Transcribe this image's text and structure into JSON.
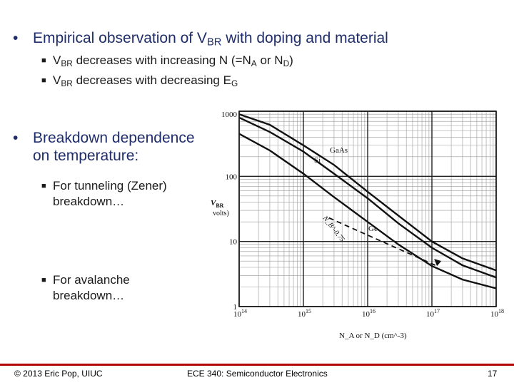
{
  "slide": {
    "bullet1": {
      "pre": "Empirical observation of V",
      "sub": "BR",
      "post": " with doping and material"
    },
    "sub1a": {
      "pre": "V",
      "sub1": "BR",
      "mid": " decreases with increasing N (=N",
      "sub2": "A",
      "mid2": " or N",
      "sub3": "D",
      "post": ")"
    },
    "sub1b": {
      "pre": "V",
      "sub1": "BR",
      "mid": " decreases with decreasing E",
      "sub2": "G"
    },
    "bullet2": {
      "line1": "Breakdown dependence",
      "line2": "on temperature:"
    },
    "sub2a": {
      "line1": "For tunneling (Zener)",
      "line2": "breakdown…"
    },
    "sub2b": {
      "line1": "For avalanche",
      "line2": "breakdown…"
    },
    "footer": {
      "left": "© 2013 Eric Pop, UIUC",
      "center": "ECE 340: Semiconductor Electronics",
      "right": "17"
    },
    "colors": {
      "accent": "#b30000",
      "bullet_text": "#1f2d6b"
    }
  },
  "chart_data": {
    "type": "line",
    "ylabel_main": "V",
    "ylabel_sub": "BR",
    "ylabel_unit": "volts)",
    "xlabel": "N_A or N_D (cm^-3)",
    "xlim": [
      100000000000000.0,
      1e+18
    ],
    "ylim": [
      1,
      1000
    ],
    "xscale": "log",
    "yscale": "log",
    "x_ticks": [
      {
        "base": "10",
        "exp": "14",
        "value": 100000000000000.0
      },
      {
        "base": "10",
        "exp": "15",
        "value": 1000000000000000.0
      },
      {
        "base": "10",
        "exp": "16",
        "value": 1e+16
      },
      {
        "base": "10",
        "exp": "17",
        "value": 1e+17
      },
      {
        "base": "10",
        "exp": "18",
        "value": 1e+18
      }
    ],
    "y_ticks": [
      {
        "label": "1",
        "value": 1
      },
      {
        "label": "10",
        "value": 10
      },
      {
        "label": "100",
        "value": 100
      },
      {
        "label": "1000",
        "value": 1000
      }
    ],
    "series": [
      {
        "name": "GaAs",
        "x": [
          100000000000000.0,
          300000000000000.0,
          1000000000000000.0,
          3000000000000000.0,
          1e+16,
          3e+16,
          1e+17,
          3e+17,
          1e+18
        ],
        "y": [
          900,
          620,
          300,
          150,
          58,
          25,
          10,
          5.5,
          3.6
        ]
      },
      {
        "name": "Si",
        "x": [
          100000000000000.0,
          300000000000000.0,
          1000000000000000.0,
          3000000000000000.0,
          1e+16,
          3e+16,
          1e+17,
          3e+17,
          1e+18
        ],
        "y": [
          800,
          480,
          240,
          110,
          46,
          19,
          8,
          4.3,
          2.8
        ]
      },
      {
        "name": "Ge",
        "x": [
          100000000000000.0,
          300000000000000.0,
          1000000000000000.0,
          3000000000000000.0,
          1e+16,
          3e+16,
          1e+17,
          3e+17,
          1e+18
        ],
        "y": [
          450,
          250,
          110,
          48,
          20,
          9,
          4.2,
          2.6,
          1.9
        ]
      }
    ],
    "dashed_line": {
      "label": "N_B^{-0.75}",
      "x": [
        2500000000000000.0,
        1.2e+17
      ],
      "y": [
        23,
        4.2
      ]
    },
    "annotations": [
      {
        "text": "GaAs"
      },
      {
        "text": "Si"
      },
      {
        "text": "Ge"
      },
      {
        "text": "N_B^-0.75"
      }
    ]
  }
}
